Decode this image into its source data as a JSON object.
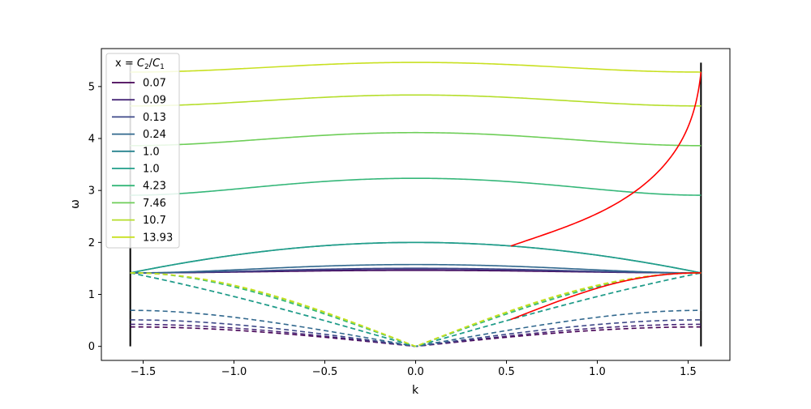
{
  "chart_data": {
    "type": "line",
    "title": "",
    "xlabel": "k",
    "ylabel": "ω",
    "xlim": [
      -1.73,
      1.73
    ],
    "ylim": [
      -0.27,
      5.73
    ],
    "x_ticks": [
      -1.5,
      -1.0,
      -0.5,
      0.0,
      0.5,
      1.0,
      1.5
    ],
    "x_tick_labels": [
      "−1.5",
      "−1.0",
      "−0.5",
      "0.0",
      "0.5",
      "1.0",
      "1.5"
    ],
    "y_ticks": [
      0,
      1,
      2,
      3,
      4,
      5
    ],
    "y_tick_labels": [
      "0",
      "1",
      "2",
      "3",
      "4",
      "5"
    ],
    "grid": false,
    "legend": {
      "placement": "top-left",
      "title_prefix": "x = ",
      "title_C2": "C",
      "title_C2_sub": "2",
      "title_slash": "/",
      "title_C1": "C",
      "title_C1_sub": "1"
    },
    "series": [
      {
        "name": "0.07",
        "x_ratio": 0.07,
        "color": "#440154",
        "k_bandgap": 1.5708
      },
      {
        "name": "0.09",
        "x_ratio": 0.09,
        "color": "#482878",
        "k_bandgap": 1.1
      },
      {
        "name": "0.13",
        "x_ratio": 0.13,
        "color": "#3e4989",
        "k_bandgap": 0.88
      },
      {
        "name": "0.24",
        "x_ratio": 0.24,
        "color": "#31688e",
        "k_bandgap": 0.68
      },
      {
        "name": "1.0",
        "x_ratio": 1.0,
        "color": "#26828e",
        "k_bandgap": 0.5236
      },
      {
        "name": "1.0",
        "x_ratio": 1.0,
        "color": "#1f9e89",
        "k_bandgap": 0.5236
      },
      {
        "name": "4.23",
        "x_ratio": 4.23,
        "color": "#35b779",
        "k_bandgap": 0.68
      },
      {
        "name": "7.46",
        "x_ratio": 7.46,
        "color": "#6ece58",
        "k_bandgap": 0.88
      },
      {
        "name": "10.7",
        "x_ratio": 10.7,
        "color": "#b5de2b",
        "k_bandgap": 1.1
      },
      {
        "name": "13.93",
        "x_ratio": 13.93,
        "color": "#c8e020",
        "k_bandgap": 1.5708
      }
    ],
    "boundary_lines": {
      "k": [
        -1.5708,
        1.5708
      ],
      "omega_range": [
        0,
        5.46
      ],
      "color": "#000000"
    },
    "critical_curve_color": "#ff0000"
  }
}
